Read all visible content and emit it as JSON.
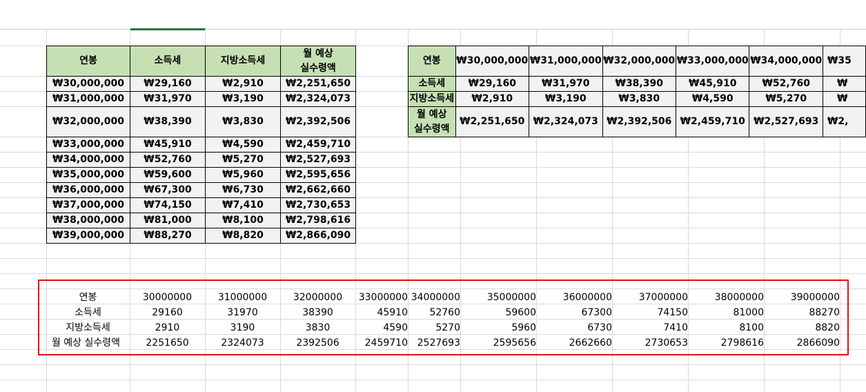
{
  "left_table": {
    "headers": [
      "연봉",
      "소득세",
      "지방소득세",
      "월 예상",
      "실수령액"
    ],
    "rows": [
      [
        "₩30,000,000",
        "₩29,160",
        "₩2,910",
        "₩2,251,650"
      ],
      [
        "₩31,000,000",
        "₩31,970",
        "₩3,190",
        "₩2,324,073"
      ],
      [
        "₩32,000,000",
        "₩38,390",
        "₩3,830",
        "₩2,392,506"
      ],
      [
        "₩33,000,000",
        "₩45,910",
        "₩4,590",
        "₩2,459,710"
      ],
      [
        "₩34,000,000",
        "₩52,760",
        "₩5,270",
        "₩2,527,693"
      ],
      [
        "₩35,000,000",
        "₩59,600",
        "₩5,960",
        "₩2,595,656"
      ],
      [
        "₩36,000,000",
        "₩67,300",
        "₩6,730",
        "₩2,662,660"
      ],
      [
        "₩37,000,000",
        "₩74,150",
        "₩7,410",
        "₩2,730,653"
      ],
      [
        "₩38,000,000",
        "₩81,000",
        "₩8,100",
        "₩2,798,616"
      ],
      [
        "₩39,000,000",
        "₩88,270",
        "₩8,820",
        "₩2,866,090"
      ]
    ]
  },
  "right_table": {
    "row_labels": [
      "연봉",
      "소득세",
      "지방소득세",
      "월 예상",
      "실수령액"
    ],
    "salary": [
      "₩30,000,000",
      "₩31,000,000",
      "₩32,000,000",
      "₩33,000,000",
      "₩34,000,000",
      "₩35"
    ],
    "income_tax": [
      "₩29,160",
      "₩31,970",
      "₩38,390",
      "₩45,910",
      "₩52,760",
      "₩"
    ],
    "local_tax": [
      "₩2,910",
      "₩3,190",
      "₩3,830",
      "₩4,590",
      "₩5,270",
      "₩"
    ],
    "monthly": [
      "₩2,251,650",
      "₩2,324,073",
      "₩2,392,506",
      "₩2,459,710",
      "₩2,527,693",
      "₩2,"
    ]
  },
  "raw_block": {
    "labels": [
      "연봉",
      "소득세",
      "지방소득세",
      "월 예상 실수령액"
    ],
    "salary": [
      "30000000",
      "31000000",
      "32000000",
      "33000000",
      "34000000",
      "35000000",
      "36000000",
      "37000000",
      "38000000",
      "39000000"
    ],
    "income_tax": [
      "29160",
      "31970",
      "38390",
      "45910",
      "52760",
      "59600",
      "67300",
      "74150",
      "81000",
      "88270"
    ],
    "local_tax": [
      "2910",
      "3190",
      "3830",
      "4590",
      "5270",
      "5960",
      "6730",
      "7410",
      "8100",
      "8820"
    ],
    "monthly": [
      "2251650",
      "2324073",
      "2392506",
      "2459710",
      "2527693",
      "2595656",
      "2662660",
      "2730653",
      "2798616",
      "2866090"
    ]
  },
  "colors": {
    "header_fill": "#c6e0b4",
    "cell_fill": "#f2f2f2",
    "highlight_border": "#e0120f",
    "selected_column": "#217346"
  }
}
